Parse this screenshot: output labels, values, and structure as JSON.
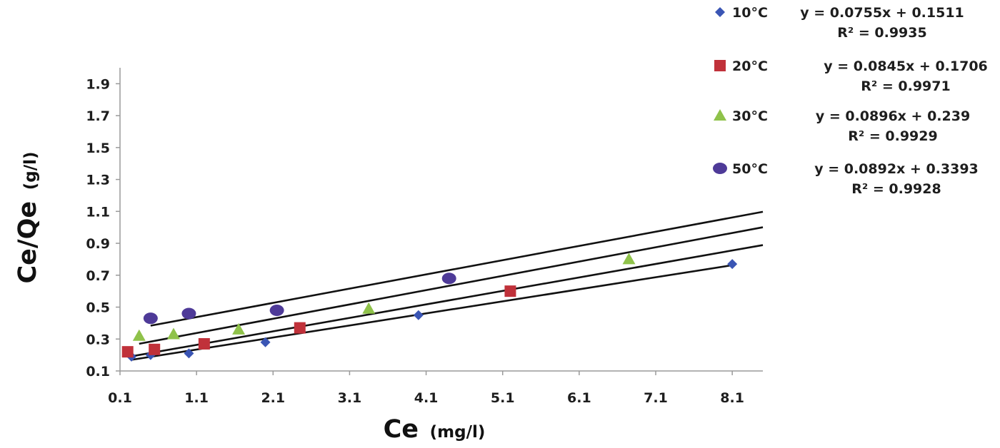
{
  "chart_data": {
    "type": "scatter",
    "title": "",
    "xlabel": "Ce",
    "xlabel_unit": "(mg/l)",
    "ylabel": "Ce/Qe",
    "ylabel_unit": "(g/l)",
    "xlim": [
      0.1,
      8.5
    ],
    "ylim": [
      0.1,
      2.0
    ],
    "x_ticks": [
      "0.1",
      "1.1",
      "2.1",
      "3.1",
      "4.1",
      "5.1",
      "6.1",
      "7.1",
      "8.1"
    ],
    "y_ticks": [
      "0.1",
      "0.3",
      "0.5",
      "0.7",
      "0.9",
      "1.1",
      "1.3",
      "1.5",
      "1.7",
      "1.9"
    ],
    "grid": false,
    "legend_position": "right",
    "series": [
      {
        "name": "10°C",
        "marker": "diamond",
        "color": "#3a55b4",
        "x": [
          0.25,
          0.5,
          1.0,
          2.0,
          4.0,
          8.1
        ],
        "y": [
          0.19,
          0.2,
          0.21,
          0.28,
          0.45,
          0.77
        ],
        "trendline": {
          "slope": 0.0755,
          "intercept": 0.1511,
          "x_range": [
            0.25,
            8.1
          ]
        },
        "equation": "y = 0.0755x + 0.1511",
        "r2": "R² = 0.9935"
      },
      {
        "name": "20°C",
        "marker": "square",
        "color": "#c0313a",
        "x": [
          0.2,
          0.55,
          1.2,
          2.45,
          5.2
        ],
        "y": [
          0.22,
          0.235,
          0.27,
          0.37,
          0.6
        ],
        "trendline": {
          "slope": 0.0845,
          "intercept": 0.1706,
          "x_range": [
            0.2,
            8.5
          ]
        },
        "equation": "y = 0.0845x + 0.1706",
        "r2": "R² = 0.9971"
      },
      {
        "name": "30°C",
        "marker": "triangle",
        "color": "#8fc24a",
        "x": [
          0.35,
          0.8,
          1.65,
          3.35,
          6.75
        ],
        "y": [
          0.32,
          0.33,
          0.36,
          0.49,
          0.8
        ],
        "trendline": {
          "slope": 0.0896,
          "intercept": 0.239,
          "x_range": [
            0.35,
            8.5
          ]
        },
        "equation": "y = 0.0896x + 0.239",
        "r2": "R² = 0.9929"
      },
      {
        "name": "50°C",
        "marker": "circle",
        "color": "#4e3a98",
        "x": [
          0.5,
          1.0,
          2.15,
          4.4
        ],
        "y": [
          0.43,
          0.46,
          0.48,
          0.68
        ],
        "trendline": {
          "slope": 0.0892,
          "intercept": 0.3393,
          "x_range": [
            0.5,
            8.5
          ]
        },
        "equation": "y = 0.0892x + 0.3393",
        "r2": "R² = 0.9928"
      }
    ]
  }
}
